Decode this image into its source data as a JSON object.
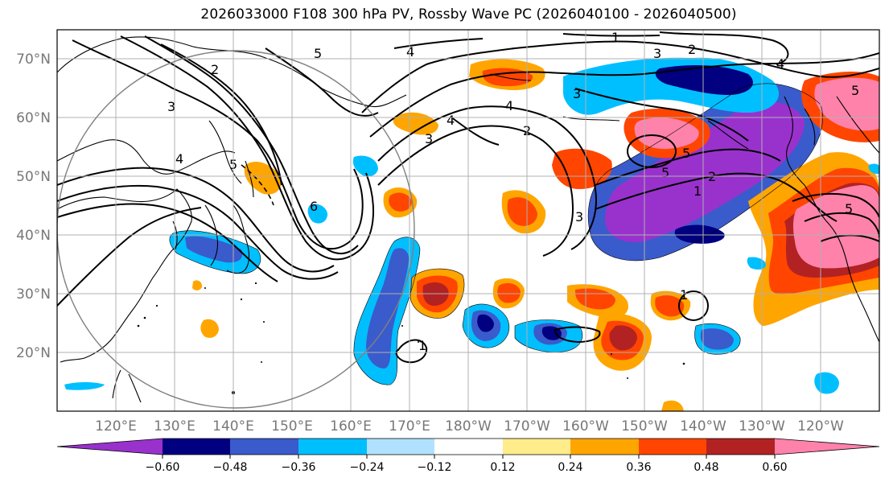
{
  "title": "2026033000 F108 300 hPa PV, Rossby Wave PC (2026040100 - 2026040500)",
  "lat_labels": [
    "70°N",
    "60°N",
    "50°N",
    "40°N",
    "30°N",
    "20°N"
  ],
  "lon_labels": [
    "120°E",
    "130°E",
    "140°E",
    "150°E",
    "160°E",
    "170°E",
    "180°W",
    "170°W",
    "160°W",
    "150°W",
    "140°W",
    "130°W",
    "120°W"
  ],
  "colorbar": {
    "tick_labels": [
      "−0.60",
      "−0.48",
      "−0.36",
      "−0.24",
      "−0.12",
      "0.12",
      "0.24",
      "0.36",
      "0.48",
      "0.60"
    ],
    "colors": [
      "#9932CC",
      "#000080",
      "#3A5BCB",
      "#00BFFF",
      "#B0E2FF",
      "#FFFFFF",
      "#FFEC8B",
      "#FFA500",
      "#FF4500",
      "#B22222",
      "#FF82AB"
    ]
  },
  "contour_labels": [
    "1",
    "2",
    "3",
    "4",
    "5",
    "6"
  ],
  "palette": {
    "land": "#000000",
    "grid": "#b0b0b0",
    "circle": "#808080"
  }
}
